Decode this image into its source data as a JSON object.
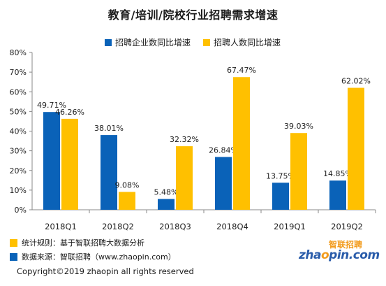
{
  "chart_data": {
    "type": "bar",
    "title": "教育/培训/院校行业招聘需求增速",
    "categories": [
      "2018Q1",
      "2018Q2",
      "2018Q3",
      "2018Q4",
      "2019Q1",
      "2019Q2"
    ],
    "series": [
      {
        "name": "招聘企业数同比增速",
        "color": "#0a62b8",
        "values": [
          49.71,
          38.01,
          5.48,
          26.84,
          13.75,
          14.85
        ],
        "labels": [
          "49.71%",
          "38.01%",
          "5.48%",
          "26.84%",
          "13.75%",
          "14.85%"
        ]
      },
      {
        "name": "招聘人数同比增速",
        "color": "#ffc000",
        "values": [
          46.26,
          9.08,
          32.32,
          67.47,
          39.03,
          62.02
        ],
        "labels": [
          "46.26%",
          "9.08%",
          "32.32%",
          "67.47%",
          "39.03%",
          "62.02%"
        ]
      }
    ],
    "ylim": [
      0,
      80
    ],
    "yticks": [
      0,
      10,
      20,
      30,
      40,
      50,
      60,
      70,
      80
    ],
    "ytick_labels": [
      "0%",
      "10%",
      "20%",
      "30%",
      "40%",
      "50%",
      "60%",
      "70%",
      "80%"
    ],
    "grid": false,
    "legend": "top"
  },
  "footnotes": {
    "rules": "统计规则：基于智联招聘大数据分析",
    "source": "数据来源：智联招聘（www.zhaopin.com）",
    "rules_color": "#ffc000",
    "source_color": "#0a62b8"
  },
  "logo": {
    "brand": "智联招聘",
    "mark_prefix": "zha",
    "mark_o": "o",
    "mark_suffix": "pin.com"
  },
  "copyright": "Copyright©2019 zhaopin all rights reserved"
}
